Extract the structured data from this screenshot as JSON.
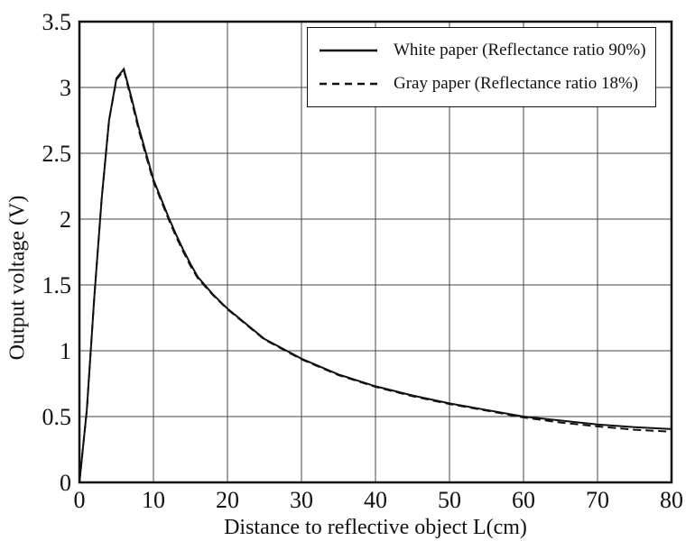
{
  "chart_data": {
    "type": "line",
    "title": "",
    "xlabel": "Distance to reflective object L(cm)",
    "ylabel": "Output voltage (V)",
    "xlim": [
      0,
      80
    ],
    "ylim": [
      0,
      3.5
    ],
    "x_ticks": [
      0,
      10,
      20,
      30,
      40,
      50,
      60,
      70,
      80
    ],
    "y_ticks": [
      0,
      0.5,
      1,
      1.5,
      2,
      2.5,
      3,
      3.5
    ],
    "grid": true,
    "legend_position": "top-right",
    "axis_color": "#111111",
    "grid_color": "#454545",
    "series": [
      {
        "name": "White paper (Reflectance ratio 90%)",
        "style": "solid",
        "color": "#111111",
        "points": [
          [
            0,
            0
          ],
          [
            1,
            0.55
          ],
          [
            2,
            1.4
          ],
          [
            3,
            2.15
          ],
          [
            4,
            2.75
          ],
          [
            5,
            3.07
          ],
          [
            6,
            3.14
          ],
          [
            7,
            2.93
          ],
          [
            8,
            2.7
          ],
          [
            9,
            2.5
          ],
          [
            10,
            2.3
          ],
          [
            11,
            2.16
          ],
          [
            12,
            2.02
          ],
          [
            13,
            1.89
          ],
          [
            14,
            1.77
          ],
          [
            15,
            1.66
          ],
          [
            16,
            1.56
          ],
          [
            18,
            1.43
          ],
          [
            20,
            1.32
          ],
          [
            25,
            1.09
          ],
          [
            30,
            0.94
          ],
          [
            35,
            0.82
          ],
          [
            40,
            0.73
          ],
          [
            45,
            0.66
          ],
          [
            50,
            0.6
          ],
          [
            55,
            0.55
          ],
          [
            60,
            0.5
          ],
          [
            65,
            0.47
          ],
          [
            70,
            0.44
          ],
          [
            75,
            0.42
          ],
          [
            80,
            0.405
          ]
        ]
      },
      {
        "name": "Gray paper (Reflectance ratio 18%)",
        "style": "dashed",
        "color": "#111111",
        "points": [
          [
            0,
            0
          ],
          [
            1,
            0.55
          ],
          [
            2,
            1.4
          ],
          [
            3,
            2.15
          ],
          [
            4,
            2.75
          ],
          [
            5,
            3.06
          ],
          [
            6,
            3.13
          ],
          [
            7,
            2.91
          ],
          [
            8,
            2.68
          ],
          [
            9,
            2.48
          ],
          [
            10,
            2.285
          ],
          [
            11,
            2.145
          ],
          [
            12,
            2.005
          ],
          [
            13,
            1.875
          ],
          [
            14,
            1.755
          ],
          [
            15,
            1.645
          ],
          [
            16,
            1.55
          ],
          [
            18,
            1.425
          ],
          [
            20,
            1.315
          ],
          [
            25,
            1.085
          ],
          [
            30,
            0.935
          ],
          [
            35,
            0.815
          ],
          [
            40,
            0.725
          ],
          [
            45,
            0.655
          ],
          [
            50,
            0.595
          ],
          [
            55,
            0.545
          ],
          [
            60,
            0.493
          ],
          [
            65,
            0.455
          ],
          [
            70,
            0.425
          ],
          [
            75,
            0.4
          ],
          [
            80,
            0.385
          ]
        ]
      }
    ]
  }
}
